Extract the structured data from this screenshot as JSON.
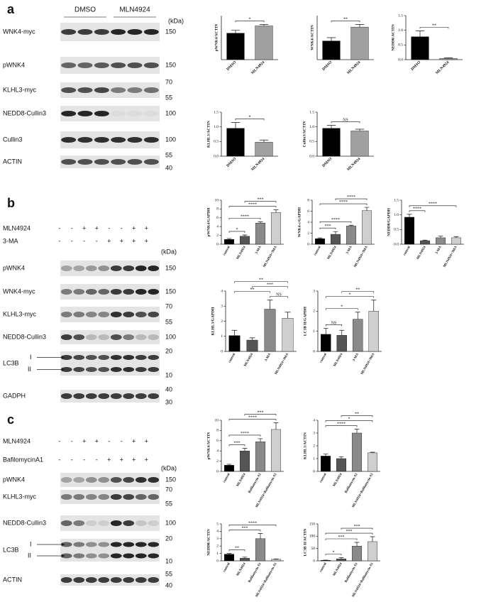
{
  "panels": [
    {
      "label": "a",
      "groups": [
        "DMSO",
        "MLN4924"
      ],
      "kda_title": "(kDa)",
      "blots": [
        {
          "name": "WNK4-myc",
          "kda": [
            "150"
          ]
        },
        {
          "name": "pWNK4",
          "kda": [
            "150"
          ]
        },
        {
          "name": "KLHL3-myc",
          "kda": [
            "70",
            "55"
          ]
        },
        {
          "name": "NEDD8-Cullin3",
          "kda": [
            "100"
          ]
        },
        {
          "name": "Cullin3",
          "kda": [
            "100"
          ]
        },
        {
          "name": "ACTIN",
          "kda": [
            "55",
            "40"
          ]
        }
      ]
    },
    {
      "label": "b",
      "kda_title": "(kDa)",
      "treatments": [
        {
          "name": "MLN4924",
          "signs": [
            "-",
            "-",
            "+",
            "+",
            "-",
            "-",
            "+",
            "+"
          ]
        },
        {
          "name": "3-MA",
          "signs": [
            "-",
            "-",
            "-",
            "-",
            "+",
            "+",
            "+",
            "+"
          ]
        }
      ],
      "blots": [
        {
          "name": "pWNK4",
          "kda": [
            "150"
          ]
        },
        {
          "name": "WNK4-myc",
          "kda": [
            "150"
          ]
        },
        {
          "name": "KLHL3-myc",
          "kda": [
            "70",
            "55"
          ]
        },
        {
          "name": "NEDD8-Cullin3",
          "kda": [
            "100"
          ]
        },
        {
          "name": "LC3B",
          "kda": [
            "20",
            "10"
          ],
          "markers": [
            "I",
            "II"
          ]
        },
        {
          "name": "GADPH",
          "kda": [
            "40",
            "30"
          ]
        }
      ]
    },
    {
      "label": "c",
      "kda_title": "(kDa)",
      "treatments": [
        {
          "name": "MLN4924",
          "signs": [
            "-",
            "-",
            "+",
            "+",
            "-",
            "-",
            "+",
            "+"
          ]
        },
        {
          "name": "BafilomycinA1",
          "signs": [
            "-",
            "-",
            "-",
            "-",
            "+",
            "+",
            "+",
            "+"
          ]
        }
      ],
      "blots": [
        {
          "name": "pWNK4",
          "kda": [
            "150"
          ]
        },
        {
          "name": "KLHL3-myc",
          "kda": [
            "70",
            "55"
          ]
        },
        {
          "name": "NEDD8-Cullin3",
          "kda": [
            "100"
          ]
        },
        {
          "name": "LC3B",
          "kda": [
            "20",
            "10"
          ],
          "markers": [
            "I",
            "II"
          ]
        },
        {
          "name": "ACTIN",
          "kda": [
            "55",
            "40"
          ]
        }
      ]
    }
  ],
  "chart_data": [
    {
      "type": "bar",
      "ylabel": "pWNK4/ACTIN",
      "categories": [
        "DMSO",
        "MLN4924"
      ],
      "values": [
        0.9,
        1.15
      ],
      "errors": [
        0.1,
        0.05
      ],
      "colors": [
        "#000000",
        "#a0a0a0"
      ],
      "ylim": [
        0,
        1.5
      ],
      "annotations": [
        {
          "text": "*",
          "between": [
            0,
            1
          ]
        }
      ]
    },
    {
      "type": "bar",
      "ylabel": "WNK4/ACTIN",
      "categories": [
        "DMSO",
        "MLN4924"
      ],
      "values": [
        0.85,
        1.48
      ],
      "errors": [
        0.15,
        0.12
      ],
      "colors": [
        "#000000",
        "#a0a0a0"
      ],
      "ylim": [
        0,
        2
      ],
      "annotations": [
        {
          "text": "**",
          "between": [
            0,
            1
          ]
        }
      ]
    },
    {
      "type": "bar",
      "ylabel": "NEDD8/ACTIN",
      "categories": [
        "DMSO",
        "MLN4924"
      ],
      "values": [
        0.78,
        0.04
      ],
      "errors": [
        0.2,
        0.02
      ],
      "colors": [
        "#000000",
        "#a0a0a0"
      ],
      "ylim": [
        0,
        1.5
      ],
      "yticks": [
        {
          "value": 0,
          "label": "0.0"
        },
        {
          "value": 0.5,
          "label": "0.5"
        },
        {
          "value": 1,
          "label": "1.0"
        },
        {
          "value": 1.5,
          "label": "1.5"
        }
      ],
      "annotations": [
        {
          "text": "**",
          "between": [
            0,
            1
          ]
        }
      ]
    },
    {
      "type": "bar",
      "ylabel": "KLHL3/ACTIN",
      "categories": [
        "DMSO",
        "MLN4924"
      ],
      "values": [
        0.95,
        0.48
      ],
      "errors": [
        0.2,
        0.07
      ],
      "colors": [
        "#000000",
        "#a0a0a0"
      ],
      "ylim": [
        0,
        1.5
      ],
      "yticks": [
        {
          "value": 0,
          "label": "0.0"
        },
        {
          "value": 0.5,
          "label": "0.5"
        },
        {
          "value": 1,
          "label": "1.0"
        },
        {
          "value": 1.5,
          "label": "1.5"
        }
      ],
      "annotations": [
        {
          "text": "*",
          "between": [
            0,
            1
          ]
        }
      ]
    },
    {
      "type": "bar",
      "ylabel": "Cullin3/ACTIN",
      "categories": [
        "DMSO",
        "MLN4924"
      ],
      "values": [
        0.95,
        0.86
      ],
      "errors": [
        0.1,
        0.06
      ],
      "colors": [
        "#000000",
        "#a0a0a0"
      ],
      "ylim": [
        0,
        1.5
      ],
      "yticks": [
        {
          "value": 0,
          "label": "0.0"
        },
        {
          "value": 0.5,
          "label": "0.5"
        },
        {
          "value": 1,
          "label": "1.0"
        },
        {
          "value": 1.5,
          "label": "1.5"
        }
      ],
      "annotations": [
        {
          "text": "NS",
          "between": [
            0,
            1
          ]
        }
      ]
    },
    {
      "type": "bar",
      "ylabel": "pWNK4/GAPDH",
      "categories": [
        "control",
        "MLN4924",
        "3-MA",
        "MLN4924+3MA"
      ],
      "values": [
        1.1,
        1.8,
        4.8,
        7.2
      ],
      "errors": [
        0.2,
        0.3,
        0.3,
        0.6
      ],
      "colors": [
        "#000000",
        "#555555",
        "#8a8a8a",
        "#cfcfcf"
      ],
      "ylim": [
        0,
        10
      ],
      "yticks": [
        0,
        2,
        4,
        6,
        8,
        10
      ],
      "annotations": [
        {
          "text": "*",
          "between": [
            0,
            1
          ]
        },
        {
          "text": "****",
          "between": [
            0,
            2
          ]
        },
        {
          "text": "****",
          "between": [
            0,
            3
          ]
        },
        {
          "text": "***",
          "between": [
            1,
            3
          ]
        }
      ]
    },
    {
      "type": "bar",
      "ylabel": "WNK4-c/GAPDH",
      "categories": [
        "control",
        "MLN4924",
        "3-MA",
        "MLN4924+3MA"
      ],
      "values": [
        1.0,
        1.8,
        3.3,
        6.1
      ],
      "errors": [
        0.15,
        0.5,
        0.15,
        0.6
      ],
      "colors": [
        "#000000",
        "#555555",
        "#8a8a8a",
        "#cfcfcf"
      ],
      "ylim": [
        0,
        8
      ],
      "yticks": [
        0,
        2,
        4,
        6,
        8
      ],
      "annotations": [
        {
          "text": "***",
          "between": [
            0,
            1
          ]
        },
        {
          "text": "****",
          "between": [
            0,
            2
          ]
        },
        {
          "text": "****",
          "between": [
            0,
            3
          ]
        },
        {
          "text": "****",
          "between": [
            1,
            3
          ]
        }
      ]
    },
    {
      "type": "bar",
      "ylabel": "NEDD8/GAPDH",
      "categories": [
        "control",
        "MLN4924",
        "3-MA",
        "MLN4924+3MA"
      ],
      "values": [
        0.92,
        0.12,
        0.22,
        0.22
      ],
      "errors": [
        0.1,
        0.02,
        0.06,
        0.04
      ],
      "colors": [
        "#000000",
        "#555555",
        "#8a8a8a",
        "#cfcfcf"
      ],
      "ylim": [
        0,
        1.5
      ],
      "yticks": [
        {
          "value": 0,
          "label": "0.0"
        },
        {
          "value": 0.5,
          "label": "0.5"
        },
        {
          "value": 1,
          "label": "1.0"
        },
        {
          "value": 1.5,
          "label": "1.5"
        }
      ],
      "annotations": [
        {
          "text": "****",
          "between": [
            0,
            1
          ]
        },
        {
          "text": "****",
          "between": [
            0,
            3
          ]
        }
      ]
    },
    {
      "type": "bar",
      "ylabel": "KLHL3/GAPDH",
      "categories": [
        "control",
        "MLN4924",
        "3-MA",
        "MLN4924+3MA"
      ],
      "values": [
        1.05,
        0.75,
        2.8,
        2.2
      ],
      "errors": [
        0.35,
        0.15,
        0.6,
        0.4
      ],
      "colors": [
        "#000000",
        "#555555",
        "#8a8a8a",
        "#cfcfcf"
      ],
      "ylim": [
        0,
        4
      ],
      "yticks": [
        0,
        1,
        2,
        3,
        4
      ],
      "annotations": [
        {
          "text": "NS",
          "between": [
            2,
            3
          ]
        },
        {
          "text": "**",
          "between": [
            0,
            2
          ]
        },
        {
          "text": "***",
          "between": [
            1,
            3
          ]
        },
        {
          "text": "**",
          "between": [
            0,
            3
          ]
        }
      ]
    },
    {
      "type": "bar",
      "ylabel": "LC3B II/GAPDH",
      "categories": [
        "control",
        "MLN4924",
        "3-MA",
        "MLN4924+3MA"
      ],
      "values": [
        0.85,
        0.8,
        1.6,
        2.0
      ],
      "errors": [
        0.3,
        0.25,
        0.35,
        0.55
      ],
      "colors": [
        "#000000",
        "#555555",
        "#8a8a8a",
        "#cfcfcf"
      ],
      "ylim": [
        0,
        3
      ],
      "yticks": [
        0,
        1,
        2,
        3
      ],
      "annotations": [
        {
          "text": "NS",
          "between": [
            0,
            1
          ]
        },
        {
          "text": "*",
          "between": [
            0,
            2
          ]
        },
        {
          "text": "*",
          "between": [
            0,
            3
          ]
        },
        {
          "text": "**",
          "between": [
            1,
            3
          ]
        }
      ]
    },
    {
      "type": "bar",
      "ylabel": "pWNK4/ACTIN",
      "categories": [
        "control",
        "MLN4924",
        "Bafilomycin A1",
        "MLN4924+Bafilomycin A1"
      ],
      "values": [
        1.2,
        4.0,
        5.8,
        8.2
      ],
      "errors": [
        0.2,
        0.5,
        0.6,
        1.3
      ],
      "colors": [
        "#000000",
        "#555555",
        "#8a8a8a",
        "#cfcfcf"
      ],
      "ylim": [
        0,
        10
      ],
      "yticks": [
        0,
        2,
        4,
        6,
        8,
        10
      ],
      "annotations": [
        {
          "text": "***",
          "between": [
            0,
            1
          ]
        },
        {
          "text": "****",
          "between": [
            0,
            2
          ]
        },
        {
          "text": "****",
          "between": [
            0,
            3
          ]
        },
        {
          "text": "***",
          "between": [
            1,
            3
          ]
        }
      ]
    },
    {
      "type": "bar",
      "ylabel": "KLHL3/ACTIN",
      "categories": [
        "control",
        "MLN4924",
        "Bafilomycin A1",
        "MLN4924+Bafilomycin A1"
      ],
      "values": [
        1.2,
        1.0,
        3.0,
        1.45
      ],
      "errors": [
        0.15,
        0.15,
        0.3,
        0.05
      ],
      "colors": [
        "#000000",
        "#555555",
        "#8a8a8a",
        "#cfcfcf"
      ],
      "ylim": [
        0,
        4
      ],
      "yticks": [
        0,
        1,
        2,
        3,
        4
      ],
      "annotations": [
        {
          "text": "****",
          "between": [
            0,
            2
          ]
        },
        {
          "text": "*",
          "between": [
            0,
            3
          ]
        },
        {
          "text": "**",
          "between": [
            1,
            3
          ]
        }
      ]
    },
    {
      "type": "bar",
      "ylabel": "NEDD8/ACTIN",
      "categories": [
        "control",
        "MLN4924",
        "Bafilomycin A1",
        "MLN4924+Bafilomycin A1"
      ],
      "values": [
        0.9,
        0.35,
        3.0,
        0.2
      ],
      "errors": [
        0.1,
        0.15,
        0.7,
        0.05
      ],
      "colors": [
        "#000000",
        "#555555",
        "#8a8a8a",
        "#cfcfcf"
      ],
      "ylim": [
        0,
        5
      ],
      "yticks": [
        0,
        1,
        2,
        3,
        4,
        5
      ],
      "annotations": [
        {
          "text": "**",
          "between": [
            0,
            1
          ]
        },
        {
          "text": "***",
          "between": [
            0,
            2
          ]
        },
        {
          "text": "****",
          "between": [
            0,
            3
          ]
        }
      ]
    },
    {
      "type": "bar",
      "ylabel": "LC3B II/ACTIN",
      "categories": [
        "control",
        "MLN4924",
        "Bafilomycin A1",
        "MLN4924+Bafilomycin A1"
      ],
      "values": [
        2,
        8,
        60,
        78
      ],
      "errors": [
        1,
        5,
        15,
        20
      ],
      "colors": [
        "#000000",
        "#555555",
        "#8a8a8a",
        "#cfcfcf"
      ],
      "ylim": [
        0,
        150
      ],
      "yticks": [
        0,
        50,
        100,
        150
      ],
      "annotations": [
        {
          "text": "*",
          "between": [
            0,
            1
          ]
        },
        {
          "text": "***",
          "between": [
            0,
            2
          ]
        },
        {
          "text": "***",
          "between": [
            0,
            3
          ]
        },
        {
          "text": "***",
          "between": [
            1,
            3
          ]
        }
      ]
    }
  ]
}
